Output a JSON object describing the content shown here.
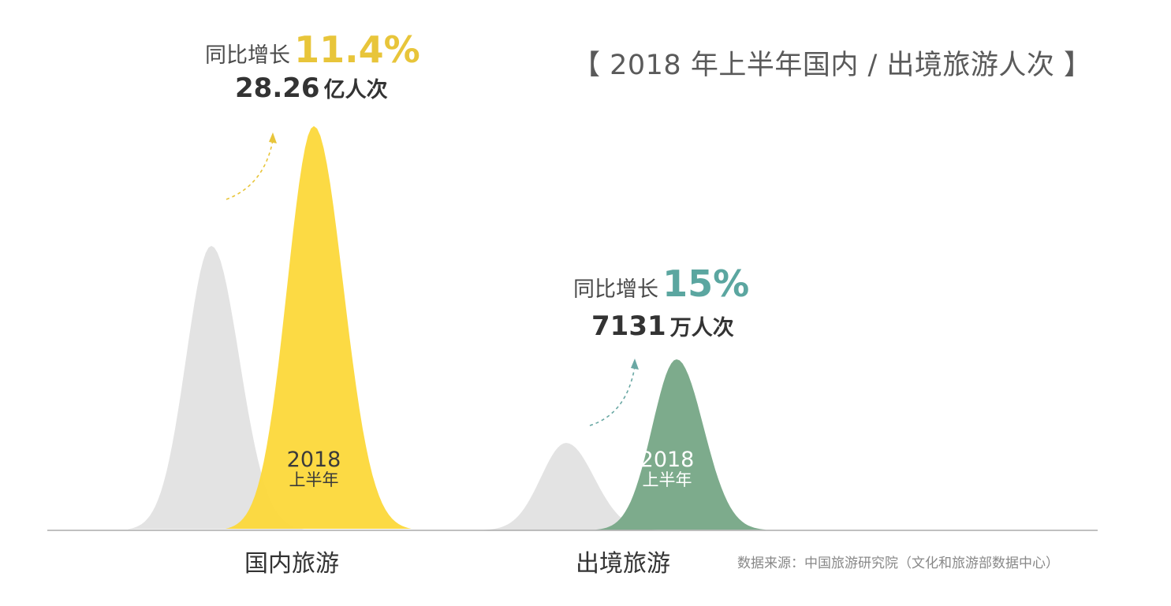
{
  "title": "【 2018 年上半年国内 / 出境旅游人次 】",
  "chart_data": {
    "type": "area",
    "title": "【 2018 年上半年国内 / 出境旅游人次 】",
    "categories": [
      "国内旅游",
      "出境旅游"
    ],
    "series": [
      {
        "name": "2018 上半年",
        "values": [
          28.26,
          0.7131
        ],
        "display": [
          "28.26 亿人次",
          "7131 万人次"
        ]
      }
    ],
    "growth": [
      "11.4%",
      "15%"
    ],
    "colors": {
      "domestic_highlight": "#fcd93c",
      "outbound_highlight": "#7aa98a",
      "previous_year": "#e3e3e3",
      "domestic_growth_text": "#e8c53a",
      "outbound_growth_text": "#5ba6a0",
      "domestic_arrow": "#e8c53a",
      "outbound_arrow": "#6aa8a4",
      "baseline": "#9a9a9a"
    }
  },
  "domestic": {
    "growth_label": "同比增长",
    "growth_value": "11.4%",
    "total_number": "28.26",
    "total_unit": "亿人次",
    "peak_year": "2018",
    "peak_period": "上半年",
    "category": "国内旅游"
  },
  "outbound": {
    "growth_label": "同比增长",
    "growth_value": "15%",
    "total_number": "7131",
    "total_unit": "万人次",
    "peak_year": "2018",
    "peak_period": "上半年",
    "category": "出境旅游"
  },
  "source": "数据来源：中国旅游研究院（文化和旅游部数据中心）"
}
